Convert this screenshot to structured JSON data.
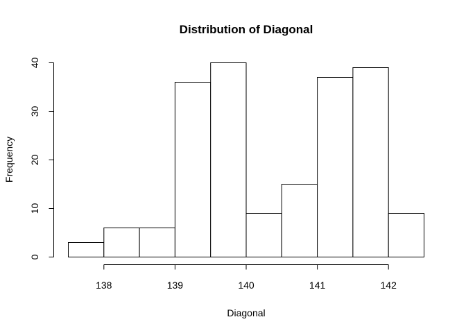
{
  "chart_data": {
    "type": "bar",
    "title": "Distribution of Diagonal",
    "xlabel": "Diagonal",
    "ylabel": "Frequency",
    "bins": [
      {
        "start": 137.5,
        "end": 138.0,
        "count": 3
      },
      {
        "start": 138.0,
        "end": 138.5,
        "count": 6
      },
      {
        "start": 138.5,
        "end": 139.0,
        "count": 6
      },
      {
        "start": 139.0,
        "end": 139.5,
        "count": 36
      },
      {
        "start": 139.5,
        "end": 140.0,
        "count": 40
      },
      {
        "start": 140.0,
        "end": 140.5,
        "count": 9
      },
      {
        "start": 140.5,
        "end": 141.0,
        "count": 15
      },
      {
        "start": 141.0,
        "end": 141.5,
        "count": 37
      },
      {
        "start": 141.5,
        "end": 142.0,
        "count": 39
      },
      {
        "start": 142.0,
        "end": 142.5,
        "count": 9
      }
    ],
    "x_ticks": [
      138,
      139,
      140,
      141,
      142
    ],
    "x_tick_labels": [
      "138",
      "139",
      "140",
      "141",
      "142"
    ],
    "y_ticks": [
      0,
      10,
      20,
      30,
      40
    ],
    "y_tick_labels": [
      "0",
      "10",
      "20",
      "30",
      "40"
    ],
    "xlim": [
      137.5,
      142.5
    ],
    "ylim": [
      0,
      40
    ],
    "grid": false,
    "legend": "none",
    "colors": {
      "bar_fill": "#ffffff",
      "bar_stroke": "#000000",
      "text": "#000000"
    }
  }
}
